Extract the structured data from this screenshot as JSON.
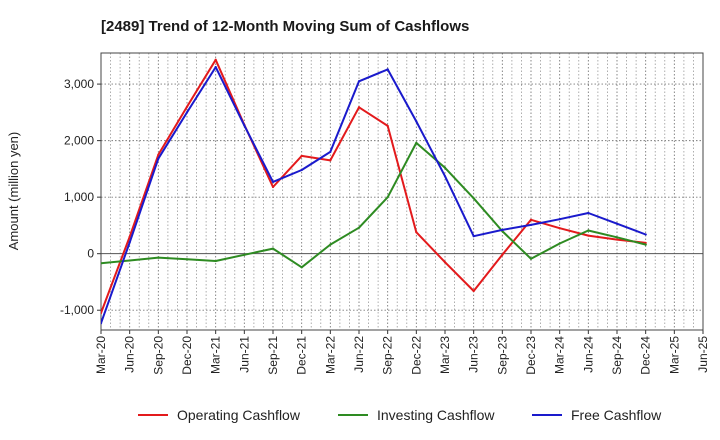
{
  "chart_data": {
    "type": "line",
    "title": "[2489]  Trend of 12-Month Moving Sum of Cashflows",
    "xlabel": "",
    "ylabel": "Amount (million yen)",
    "ylim": [
      -1350,
      3550
    ],
    "yticks": [
      -1000,
      0,
      1000,
      2000,
      3000
    ],
    "ytick_labels": [
      "-1,000",
      "0",
      "1,000",
      "2,000",
      "3,000"
    ],
    "categories": [
      "Mar-20",
      "Jun-20",
      "Sep-20",
      "Dec-20",
      "Mar-21",
      "Jun-21",
      "Sep-21",
      "Dec-21",
      "Mar-22",
      "Jun-22",
      "Sep-22",
      "Dec-22",
      "Mar-23",
      "Jun-23",
      "Sep-23",
      "Dec-23",
      "Mar-24",
      "Jun-24",
      "Sep-24",
      "Dec-24",
      "Mar-25",
      "Jun-25"
    ],
    "grid": true,
    "legend_position": "bottom",
    "series": [
      {
        "name": "Operating Cashflow",
        "color": "#e31a1c",
        "values": [
          -1050,
          300,
          1750,
          2600,
          3430,
          2280,
          1180,
          1730,
          1650,
          2590,
          2260,
          380,
          -150,
          -660,
          -20,
          600,
          450,
          320,
          250,
          190,
          null,
          null
        ]
      },
      {
        "name": "Investing Cashflow",
        "color": "#2e8b22",
        "values": [
          -170,
          -120,
          -70,
          -100,
          -130,
          -20,
          90,
          -240,
          160,
          460,
          1000,
          1960,
          1520,
          980,
          400,
          -90,
          180,
          410,
          290,
          160,
          null,
          null
        ]
      },
      {
        "name": "Free Cashflow",
        "color": "#1a1acc",
        "values": [
          -1230,
          200,
          1680,
          2500,
          3300,
          2270,
          1270,
          1480,
          1800,
          3050,
          3260,
          2340,
          1370,
          310,
          420,
          510,
          610,
          720,
          530,
          340,
          null,
          null
        ]
      }
    ]
  }
}
